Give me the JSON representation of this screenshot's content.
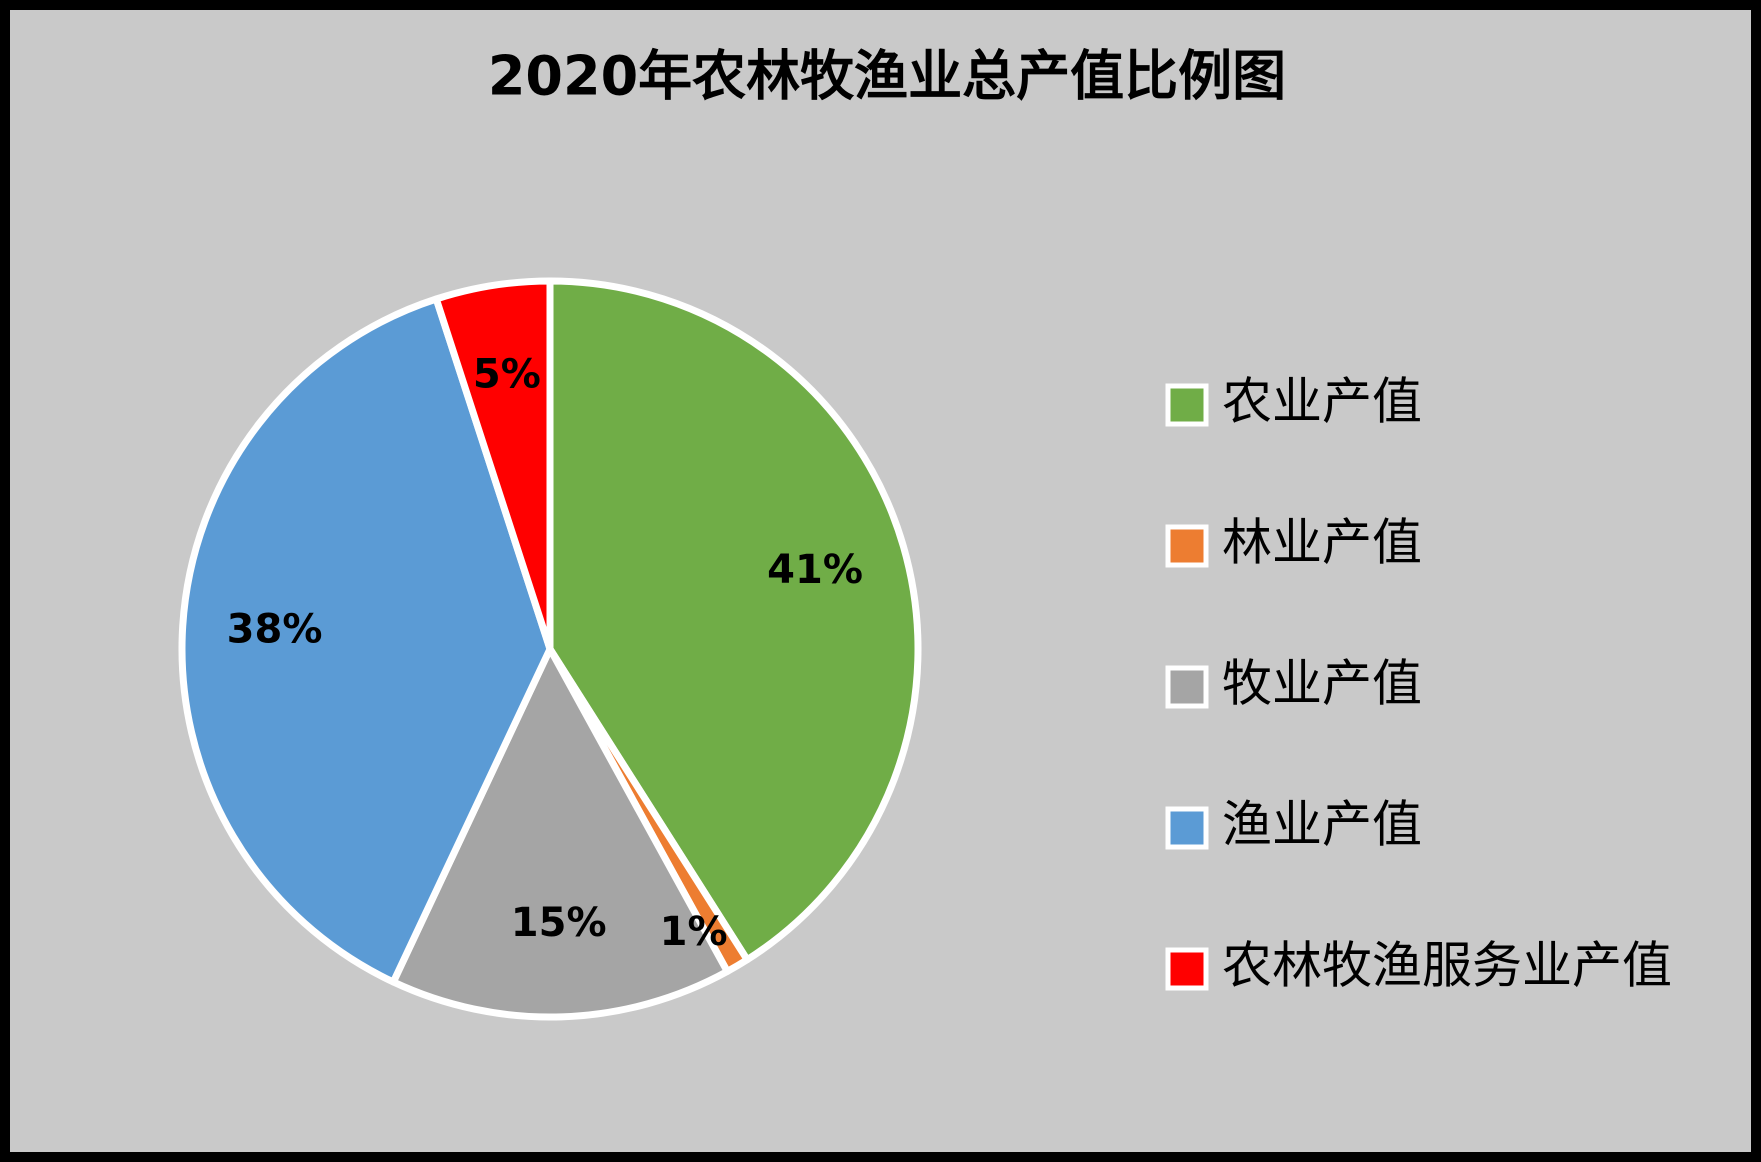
{
  "chart_data": {
    "type": "pie",
    "title": "2020年农林牧渔业总产值比例图",
    "categories": [
      "农业产值",
      "林业产值",
      "牧业产值",
      "渔业产值",
      "农林牧渔服务业产值"
    ],
    "values": [
      41,
      1,
      15,
      38,
      5
    ],
    "value_labels": [
      "41%",
      "1%",
      "15%",
      "38%",
      "5%"
    ],
    "colors": [
      "#70ad47",
      "#ed7d31",
      "#a5a5a5",
      "#5b9bd5",
      "#ff0000"
    ],
    "legend": "right"
  }
}
